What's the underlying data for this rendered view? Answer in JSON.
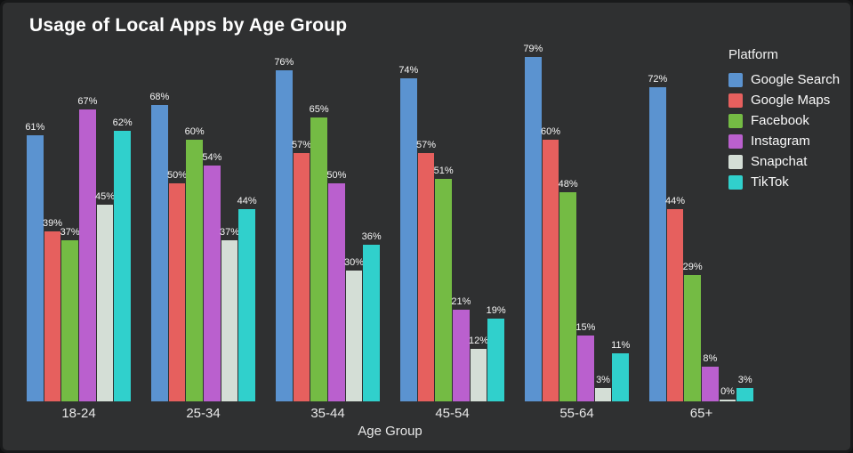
{
  "chart_data": {
    "type": "bar",
    "title": "Usage of Local Apps by Age Group",
    "xlabel": "Age Group",
    "ylim": [
      0,
      100
    ],
    "value_suffix": "%",
    "grid": false,
    "background_color": "#2f3031",
    "categories": [
      "18-24",
      "25-34",
      "35-44",
      "45-54",
      "55-64",
      "65+"
    ],
    "series": [
      {
        "name": "Google Search",
        "color": "#5b93d0",
        "values": [
          61,
          68,
          76,
          74,
          79,
          72
        ]
      },
      {
        "name": "Google Maps",
        "color": "#e6605e",
        "values": [
          39,
          50,
          57,
          57,
          60,
          44
        ]
      },
      {
        "name": "Facebook",
        "color": "#74bb44",
        "values": [
          37,
          60,
          65,
          51,
          48,
          29
        ]
      },
      {
        "name": "Instagram",
        "color": "#ba60ce",
        "values": [
          67,
          54,
          50,
          21,
          15,
          8
        ]
      },
      {
        "name": "Snapchat",
        "color": "#d4ded6",
        "values": [
          45,
          37,
          30,
          12,
          3,
          0
        ]
      },
      {
        "name": "TikTok",
        "color": "#30d0cc",
        "values": [
          62,
          44,
          36,
          19,
          11,
          3
        ]
      }
    ],
    "legend": {
      "title": "Platform",
      "position": "right"
    }
  }
}
